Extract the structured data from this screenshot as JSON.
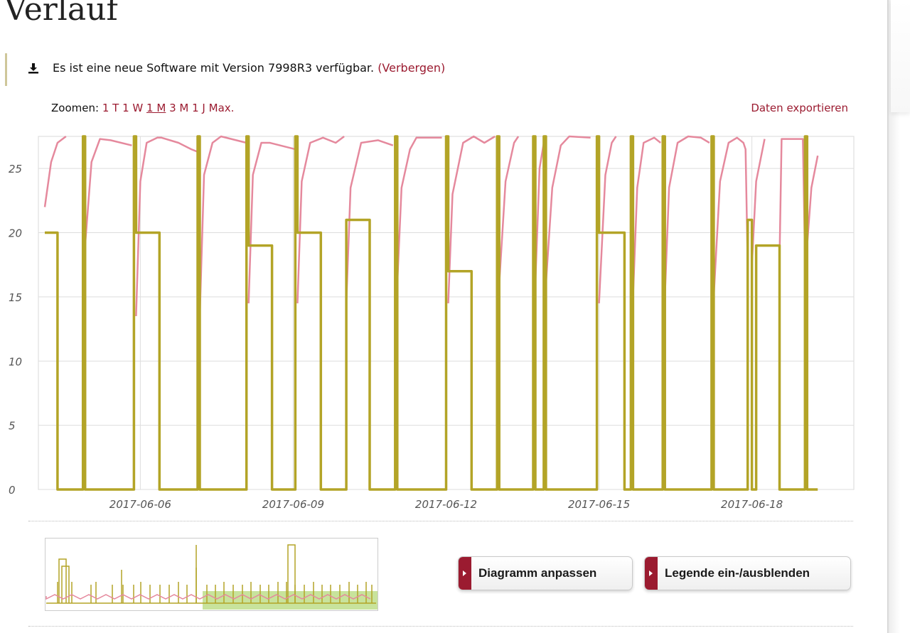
{
  "page": {
    "title": "Verlauf"
  },
  "notice": {
    "icon": "download-icon",
    "text": "Es ist eine neue Software mit Version 7998R3 verfügbar.",
    "link": "(Verbergen)"
  },
  "zoom": {
    "label": "Zoomen:",
    "options": [
      "1 T",
      "1 W",
      "1 M",
      "3 M",
      "1 J",
      "Max."
    ],
    "active": "1 M"
  },
  "export": {
    "label": "Daten exportieren"
  },
  "buttons": {
    "adjust": "Diagramm anpassen",
    "legend": "Legende ein-/ausblenden"
  },
  "colors": {
    "accent": "#9b1b30",
    "olive": "#b3a427",
    "pink": "#e5899d",
    "navigator_fill": "#b5d97b"
  },
  "chart_data": {
    "type": "line",
    "xlabel": "",
    "ylabel": "",
    "ylim": [
      0,
      27.5
    ],
    "xlim": [
      "2017-06-04",
      "2017-06-20"
    ],
    "y_ticks": [
      0,
      5,
      10,
      15,
      20,
      25
    ],
    "x_ticks": [
      "2017-06-06",
      "2017-06-09",
      "2017-06-12",
      "2017-06-15",
      "2017-06-18"
    ],
    "grid": true,
    "series": [
      {
        "color": "#b3a427",
        "points": [
          [
            "2017-06-04 03:00",
            20
          ],
          [
            "2017-06-04 09:00",
            20
          ],
          [
            "2017-06-04 09:00",
            0
          ],
          [
            "2017-06-04 21:00",
            0
          ],
          [
            "2017-06-04 21:00",
            27.5
          ],
          [
            "2017-06-04 22:00",
            27.5
          ],
          [
            "2017-06-04 22:00",
            0
          ],
          [
            "2017-06-05 21:00",
            0
          ],
          [
            "2017-06-05 21:00",
            27.5
          ],
          [
            "2017-06-05 22:00",
            27.5
          ],
          [
            "2017-06-05 22:00",
            20
          ],
          [
            "2017-06-06 09:00",
            20
          ],
          [
            "2017-06-06 09:00",
            0
          ],
          [
            "2017-06-07 03:00",
            0
          ],
          [
            "2017-06-07 03:00",
            27.5
          ],
          [
            "2017-06-07 04:00",
            27.5
          ],
          [
            "2017-06-07 04:00",
            0
          ],
          [
            "2017-06-08 02:00",
            0
          ],
          [
            "2017-06-08 02:00",
            27.5
          ],
          [
            "2017-06-08 03:00",
            27.5
          ],
          [
            "2017-06-08 03:00",
            19
          ],
          [
            "2017-06-08 14:00",
            19
          ],
          [
            "2017-06-08 14:00",
            0
          ],
          [
            "2017-06-09 01:00",
            0
          ],
          [
            "2017-06-09 01:00",
            27.5
          ],
          [
            "2017-06-09 02:00",
            27.5
          ],
          [
            "2017-06-09 02:00",
            20
          ],
          [
            "2017-06-09 13:00",
            20
          ],
          [
            "2017-06-09 13:00",
            0
          ],
          [
            "2017-06-10 01:00",
            0
          ],
          [
            "2017-06-10 01:00",
            21
          ],
          [
            "2017-06-10 12:00",
            21
          ],
          [
            "2017-06-10 12:00",
            0
          ],
          [
            "2017-06-11 00:00",
            0
          ],
          [
            "2017-06-11 00:00",
            27.5
          ],
          [
            "2017-06-11 01:00",
            27.5
          ],
          [
            "2017-06-11 01:00",
            0
          ],
          [
            "2017-06-12 00:00",
            0
          ],
          [
            "2017-06-12 00:00",
            27.5
          ],
          [
            "2017-06-12 01:00",
            27.5
          ],
          [
            "2017-06-12 01:00",
            17
          ],
          [
            "2017-06-12 12:00",
            17
          ],
          [
            "2017-06-12 12:00",
            0
          ],
          [
            "2017-06-13 00:00",
            0
          ],
          [
            "2017-06-13 00:00",
            27.5
          ],
          [
            "2017-06-13 01:00",
            27.5
          ],
          [
            "2017-06-13 01:00",
            0
          ],
          [
            "2017-06-13 17:00",
            0
          ],
          [
            "2017-06-13 17:00",
            27.5
          ],
          [
            "2017-06-13 18:00",
            27.5
          ],
          [
            "2017-06-13 18:00",
            0
          ],
          [
            "2017-06-13 22:00",
            0
          ],
          [
            "2017-06-13 22:00",
            27.5
          ],
          [
            "2017-06-13 23:00",
            27.5
          ],
          [
            "2017-06-13 23:00",
            0
          ],
          [
            "2017-06-14 23:00",
            0
          ],
          [
            "2017-06-14 23:00",
            27.5
          ],
          [
            "2017-06-15 00:00",
            27.5
          ],
          [
            "2017-06-15 00:00",
            20
          ],
          [
            "2017-06-15 12:00",
            20
          ],
          [
            "2017-06-15 12:00",
            0
          ],
          [
            "2017-06-15 15:00",
            0
          ],
          [
            "2017-06-15 15:00",
            27.5
          ],
          [
            "2017-06-15 16:00",
            27.5
          ],
          [
            "2017-06-15 16:00",
            0
          ],
          [
            "2017-06-16 06:00",
            0
          ],
          [
            "2017-06-16 06:00",
            27.5
          ],
          [
            "2017-06-16 07:00",
            27.5
          ],
          [
            "2017-06-16 07:00",
            0
          ],
          [
            "2017-06-17 05:00",
            0
          ],
          [
            "2017-06-17 05:00",
            27.5
          ],
          [
            "2017-06-17 06:00",
            27.5
          ],
          [
            "2017-06-17 06:00",
            0
          ],
          [
            "2017-06-17 22:00",
            0
          ],
          [
            "2017-06-17 22:00",
            21
          ],
          [
            "2017-06-18 00:00",
            21
          ],
          [
            "2017-06-18 00:00",
            0
          ],
          [
            "2017-06-18 02:00",
            0
          ],
          [
            "2017-06-18 02:00",
            19
          ],
          [
            "2017-06-18 13:00",
            19
          ],
          [
            "2017-06-18 13:00",
            0
          ],
          [
            "2017-06-19 01:00",
            0
          ],
          [
            "2017-06-19 01:00",
            27.5
          ],
          [
            "2017-06-19 02:00",
            27.5
          ],
          [
            "2017-06-19 02:00",
            0
          ],
          [
            "2017-06-19 07:00",
            0
          ]
        ]
      },
      {
        "color": "#e5899d",
        "points": [
          [
            "2017-06-04 03:00",
            22
          ],
          [
            "2017-06-04 06:00",
            25.5
          ],
          [
            "2017-06-04 09:00",
            27
          ],
          [
            "2017-06-04 13:00",
            27.5
          ],
          null,
          [
            "2017-06-04 22:00",
            19
          ],
          [
            "2017-06-05 01:00",
            25.5
          ],
          [
            "2017-06-05 05:00",
            27.3
          ],
          [
            "2017-06-05 10:00",
            27.2
          ],
          [
            "2017-06-05 20:00",
            26.8
          ],
          null,
          [
            "2017-06-05 22:00",
            13.5
          ],
          [
            "2017-06-06 00:00",
            24
          ],
          [
            "2017-06-06 03:00",
            27
          ],
          [
            "2017-06-06 08:00",
            27.4
          ],
          [
            "2017-06-06 10:00",
            27.4
          ],
          [
            "2017-06-06 18:00",
            27
          ],
          [
            "2017-06-07 00:00",
            26.5
          ],
          [
            "2017-06-07 03:00",
            26.3
          ],
          null,
          [
            "2017-06-07 04:00",
            13.5
          ],
          [
            "2017-06-07 06:00",
            24.5
          ],
          [
            "2017-06-07 10:00",
            27
          ],
          [
            "2017-06-07 14:00",
            27.5
          ],
          [
            "2017-06-08 02:00",
            27
          ],
          null,
          [
            "2017-06-08 03:00",
            14.5
          ],
          [
            "2017-06-08 05:00",
            24.5
          ],
          [
            "2017-06-08 09:00",
            27
          ],
          [
            "2017-06-08 13:00",
            27
          ],
          [
            "2017-06-09 01:00",
            26.5
          ],
          null,
          [
            "2017-06-09 02:00",
            14.5
          ],
          [
            "2017-06-09 04:00",
            24
          ],
          [
            "2017-06-09 08:00",
            27
          ],
          [
            "2017-06-09 14:00",
            27.4
          ],
          [
            "2017-06-09 20:00",
            27
          ],
          [
            "2017-06-10 00:00",
            27.5
          ],
          null,
          [
            "2017-06-10 01:00",
            14.5
          ],
          [
            "2017-06-10 03:00",
            23.5
          ],
          [
            "2017-06-10 08:00",
            27
          ],
          [
            "2017-06-10 16:00",
            27.2
          ],
          [
            "2017-06-10 23:00",
            26.8
          ],
          null,
          [
            "2017-06-11 01:00",
            16
          ],
          [
            "2017-06-11 03:00",
            23.5
          ],
          [
            "2017-06-11 07:00",
            26.5
          ],
          [
            "2017-06-11 10:00",
            27.4
          ],
          [
            "2017-06-11 22:00",
            27.4
          ],
          null,
          [
            "2017-06-12 01:00",
            14.5
          ],
          [
            "2017-06-12 03:00",
            23
          ],
          [
            "2017-06-12 08:00",
            27
          ],
          [
            "2017-06-12 13:00",
            27.5
          ],
          [
            "2017-06-12 18:00",
            27
          ],
          [
            "2017-06-12 23:00",
            27.5
          ],
          null,
          [
            "2017-06-13 01:00",
            16
          ],
          [
            "2017-06-13 04:00",
            24
          ],
          [
            "2017-06-13 08:00",
            27
          ],
          [
            "2017-06-13 10:00",
            27.5
          ],
          null,
          [
            "2017-06-13 18:00",
            16
          ],
          [
            "2017-06-13 20:00",
            25
          ],
          [
            "2017-06-13 22:00",
            27
          ],
          null,
          [
            "2017-06-13 23:00",
            16
          ],
          [
            "2017-06-14 02:00",
            23.5
          ],
          [
            "2017-06-14 06:00",
            26.8
          ],
          [
            "2017-06-14 10:00",
            27.5
          ],
          [
            "2017-06-14 20:00",
            27.4
          ],
          null,
          [
            "2017-06-15 00:00",
            14.5
          ],
          [
            "2017-06-15 03:00",
            24.5
          ],
          [
            "2017-06-15 06:00",
            27
          ],
          [
            "2017-06-15 08:00",
            27.5
          ],
          null,
          [
            "2017-06-15 16:00",
            15
          ],
          [
            "2017-06-15 18:00",
            23.5
          ],
          [
            "2017-06-15 21:00",
            27
          ],
          [
            "2017-06-16 02:00",
            27.4
          ],
          [
            "2017-06-16 05:00",
            27
          ],
          null,
          [
            "2017-06-16 07:00",
            15
          ],
          [
            "2017-06-16 09:00",
            23.5
          ],
          [
            "2017-06-16 13:00",
            27
          ],
          [
            "2017-06-16 18:00",
            27.5
          ],
          [
            "2017-06-17 00:00",
            27.4
          ],
          [
            "2017-06-17 04:00",
            27
          ],
          null,
          [
            "2017-06-17 06:00",
            15
          ],
          [
            "2017-06-17 09:00",
            24
          ],
          [
            "2017-06-17 13:00",
            27
          ],
          [
            "2017-06-17 17:00",
            27.4
          ],
          [
            "2017-06-17 20:00",
            27
          ],
          [
            "2017-06-17 21:00",
            26.5
          ],
          [
            "2017-06-17 22:00",
            17.5
          ],
          null,
          [
            "2017-06-18 00:00",
            17.5
          ],
          [
            "2017-06-18 02:00",
            24
          ],
          [
            "2017-06-18 06:00",
            27.3
          ],
          null,
          [
            "2017-06-18 13:00",
            18
          ],
          [
            "2017-06-18 14:00",
            27.3
          ],
          [
            "2017-06-19 00:00",
            27.3
          ],
          [
            "2017-06-19 01:00",
            18
          ],
          null,
          [
            "2017-06-19 02:00",
            19
          ],
          [
            "2017-06-19 04:00",
            23.5
          ],
          [
            "2017-06-19 07:00",
            26
          ]
        ]
      }
    ]
  }
}
